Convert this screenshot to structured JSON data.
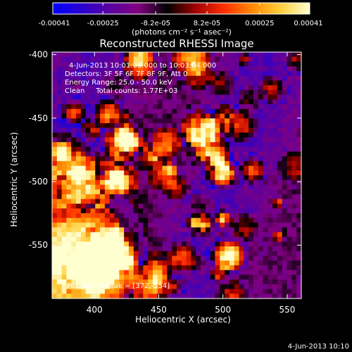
{
  "colorbar": {
    "ticks": [
      "-0.00041",
      "-0.00025",
      "-8.2e-05",
      "8.2e-05",
      "0.00025",
      "0.00041"
    ],
    "tick_values": [
      -0.00041,
      -0.00025,
      -8.2e-05,
      8.2e-05,
      0.00025,
      0.00041
    ],
    "range": [
      -0.00041,
      0.00041
    ],
    "unit_label": "(photons cm⁻² s⁻¹ asec⁻²)",
    "colors": [
      "#0000ff",
      "#2a00d0",
      "#5a00a0",
      "#800080",
      "#000000",
      "#a00000",
      "#ff3000",
      "#ff8a00",
      "#ffd040",
      "#ffffd0"
    ]
  },
  "chart_data": {
    "type": "heatmap",
    "title": "Reconstructed RHESSI Image",
    "xlabel": "Heliocentric X (arcsec)",
    "ylabel": "Heliocentric Y (arcsec)",
    "xlim": [
      367,
      561
    ],
    "ylim": [
      -592,
      -398
    ],
    "xticks": [
      400,
      450,
      500,
      550
    ],
    "yticks": [
      -400,
      -450,
      -500,
      -550
    ],
    "annotations": [
      "4-Jun-2013 10:01:00.000 to 10:03:04.000",
      "Detectors: 3F 5F 6F 7F 8F 9F, Att 0",
      "Energy Range: 25.0 - 50.0 keV",
      "Clean     Total counts: 1.77E+03"
    ],
    "peak_label": "Position of Peak = [372,-554]",
    "peak": [
      372,
      -554
    ]
  },
  "footer": {
    "timestamp": "4-Jun-2013 10:10"
  }
}
